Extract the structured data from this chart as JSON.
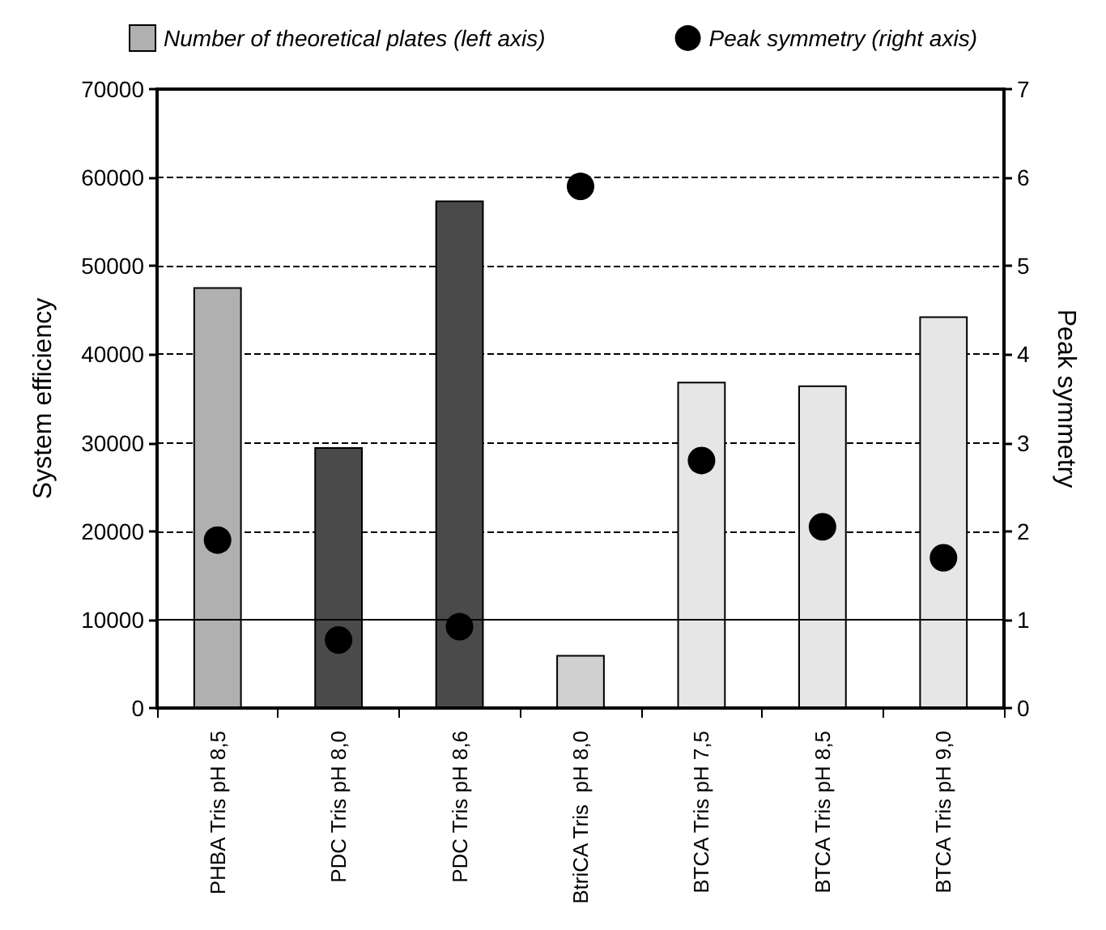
{
  "chart_data": {
    "type": "bar",
    "ylabel": "System efficiency",
    "y2label": "Peak symmetry",
    "categories": [
      "PHBA Tris pH 8,5",
      "PDC Tris pH 8,0",
      "PDC Tris pH 8,6",
      "BtriCA Tris  pH 8,0",
      "BTCA Tris pH 7,5",
      "BTCA Tris pH 8,5",
      "BTCA Tris pH 9,0"
    ],
    "series": [
      {
        "name": "Number of theoretical plates (left axis)",
        "colors": [
          "#b0b0b0",
          "#4a4a4a",
          "#4a4a4a",
          "#d0d0d0",
          "#e6e6e6",
          "#e6e6e6",
          "#e6e6e6"
        ],
        "values": [
          47600,
          29500,
          57400,
          6000,
          36900,
          36500,
          44300
        ]
      },
      {
        "name": "Peak symmetry (right axis)",
        "type": "scatter",
        "axis": "y2",
        "color": "#000000",
        "values": [
          1.9,
          0.77,
          0.92,
          5.9,
          2.8,
          2.05,
          1.7
        ]
      }
    ],
    "ylim": [
      0,
      70000
    ],
    "yticks": [
      0,
      10000,
      20000,
      30000,
      40000,
      50000,
      60000,
      70000
    ],
    "y2lim": [
      0,
      7
    ],
    "y2ticks": [
      0,
      1,
      2,
      3,
      4,
      5,
      6,
      7
    ],
    "ref_lines": [
      {
        "axis": "y2",
        "value": 1,
        "color": "#000000",
        "line_style": "solid"
      }
    ],
    "grid": "y",
    "line_style": "dashed",
    "marker": "circle",
    "legend": "top"
  }
}
